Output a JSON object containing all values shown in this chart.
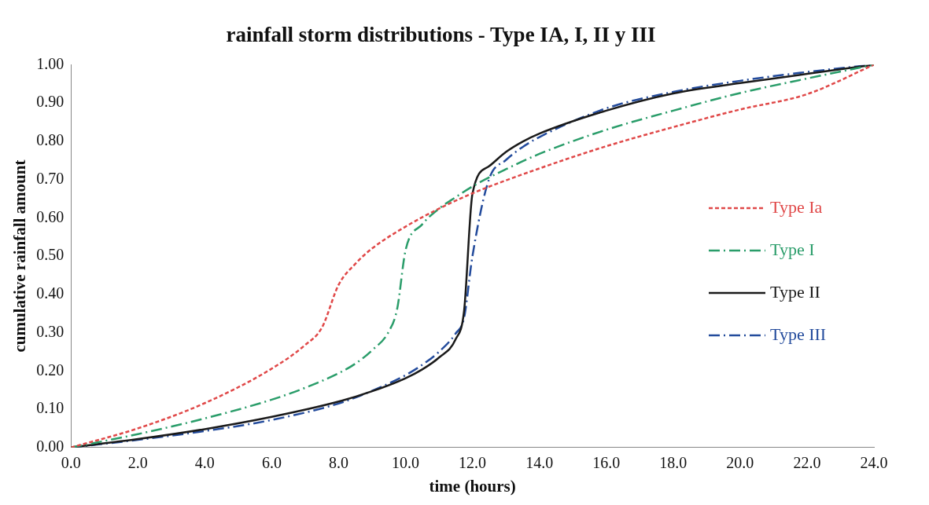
{
  "chart_data": {
    "type": "line",
    "title": "rainfall storm distributions - Type IA, I, II y III",
    "xlabel": "time (hours)",
    "ylabel": "cumulative rainfall amount",
    "xlim": [
      0,
      24
    ],
    "ylim": [
      0,
      1
    ],
    "xticks": [
      {
        "value": 0,
        "label": "0.0"
      },
      {
        "value": 2,
        "label": "2.0"
      },
      {
        "value": 4,
        "label": "4.0"
      },
      {
        "value": 6,
        "label": "6.0"
      },
      {
        "value": 8,
        "label": "8.0"
      },
      {
        "value": 10,
        "label": "10.0"
      },
      {
        "value": 12,
        "label": "12.0"
      },
      {
        "value": 14,
        "label": "14.0"
      },
      {
        "value": 16,
        "label": "16.0"
      },
      {
        "value": 18,
        "label": "18.0"
      },
      {
        "value": 20,
        "label": "20.0"
      },
      {
        "value": 22,
        "label": "22.0"
      },
      {
        "value": 24,
        "label": "24.0"
      }
    ],
    "yticks": [
      {
        "value": 0,
        "label": "0.00"
      },
      {
        "value": 0.1,
        "label": "0.10"
      },
      {
        "value": 0.2,
        "label": "0.20"
      },
      {
        "value": 0.3,
        "label": "0.30"
      },
      {
        "value": 0.4,
        "label": "0.40"
      },
      {
        "value": 0.5,
        "label": "0.50"
      },
      {
        "value": 0.6,
        "label": "0.60"
      },
      {
        "value": 0.7,
        "label": "0.70"
      },
      {
        "value": 0.8,
        "label": "0.80"
      },
      {
        "value": 0.9,
        "label": "0.90"
      },
      {
        "value": 1,
        "label": "1.00"
      }
    ],
    "grid": false,
    "legend": "right",
    "marker": "none",
    "series": [
      {
        "name": "Type Ia",
        "color": "#e04848",
        "line_style": "dotted",
        "x": [
          0,
          2,
          4,
          6,
          7,
          7.5,
          8,
          8.5,
          9,
          10,
          11,
          12,
          14,
          16,
          18,
          20,
          22,
          24
        ],
        "values": [
          0,
          0.05,
          0.116,
          0.206,
          0.268,
          0.313,
          0.425,
          0.48,
          0.52,
          0.577,
          0.624,
          0.664,
          0.729,
          0.787,
          0.837,
          0.883,
          0.923,
          1
        ]
      },
      {
        "name": "Type I",
        "color": "#2a9d6a",
        "line_style": "dashed",
        "x": [
          0,
          2,
          4,
          6,
          7,
          8,
          8.5,
          9,
          9.5,
          9.75,
          10,
          10.5,
          11,
          11.5,
          12,
          13,
          14,
          16,
          18,
          20,
          22,
          24
        ],
        "values": [
          0,
          0.035,
          0.076,
          0.125,
          0.156,
          0.194,
          0.219,
          0.254,
          0.303,
          0.362,
          0.515,
          0.583,
          0.624,
          0.654,
          0.682,
          0.727,
          0.767,
          0.83,
          0.88,
          0.926,
          0.964,
          1
        ]
      },
      {
        "name": "Type II",
        "color": "#1a1a1a",
        "line_style": "solid",
        "x": [
          0,
          2,
          4,
          6,
          8,
          9,
          10,
          10.5,
          11,
          11.5,
          11.75,
          12,
          12.5,
          13,
          13.5,
          14,
          16,
          18,
          20,
          22,
          24
        ],
        "values": [
          0,
          0.022,
          0.048,
          0.08,
          0.12,
          0.147,
          0.181,
          0.204,
          0.235,
          0.283,
          0.357,
          0.663,
          0.735,
          0.772,
          0.799,
          0.82,
          0.88,
          0.925,
          0.952,
          0.976,
          1
        ]
      },
      {
        "name": "Type III",
        "color": "#234b9c",
        "line_style": "dashed",
        "x": [
          0,
          2,
          4,
          6,
          8,
          9,
          10,
          10.5,
          11,
          11.5,
          11.75,
          12,
          12.5,
          13,
          13.5,
          14,
          16,
          18,
          20,
          22,
          24
        ],
        "values": [
          0,
          0.02,
          0.043,
          0.072,
          0.115,
          0.148,
          0.189,
          0.216,
          0.25,
          0.298,
          0.339,
          0.5,
          0.702,
          0.751,
          0.785,
          0.811,
          0.886,
          0.929,
          0.958,
          0.981,
          1
        ]
      }
    ]
  }
}
